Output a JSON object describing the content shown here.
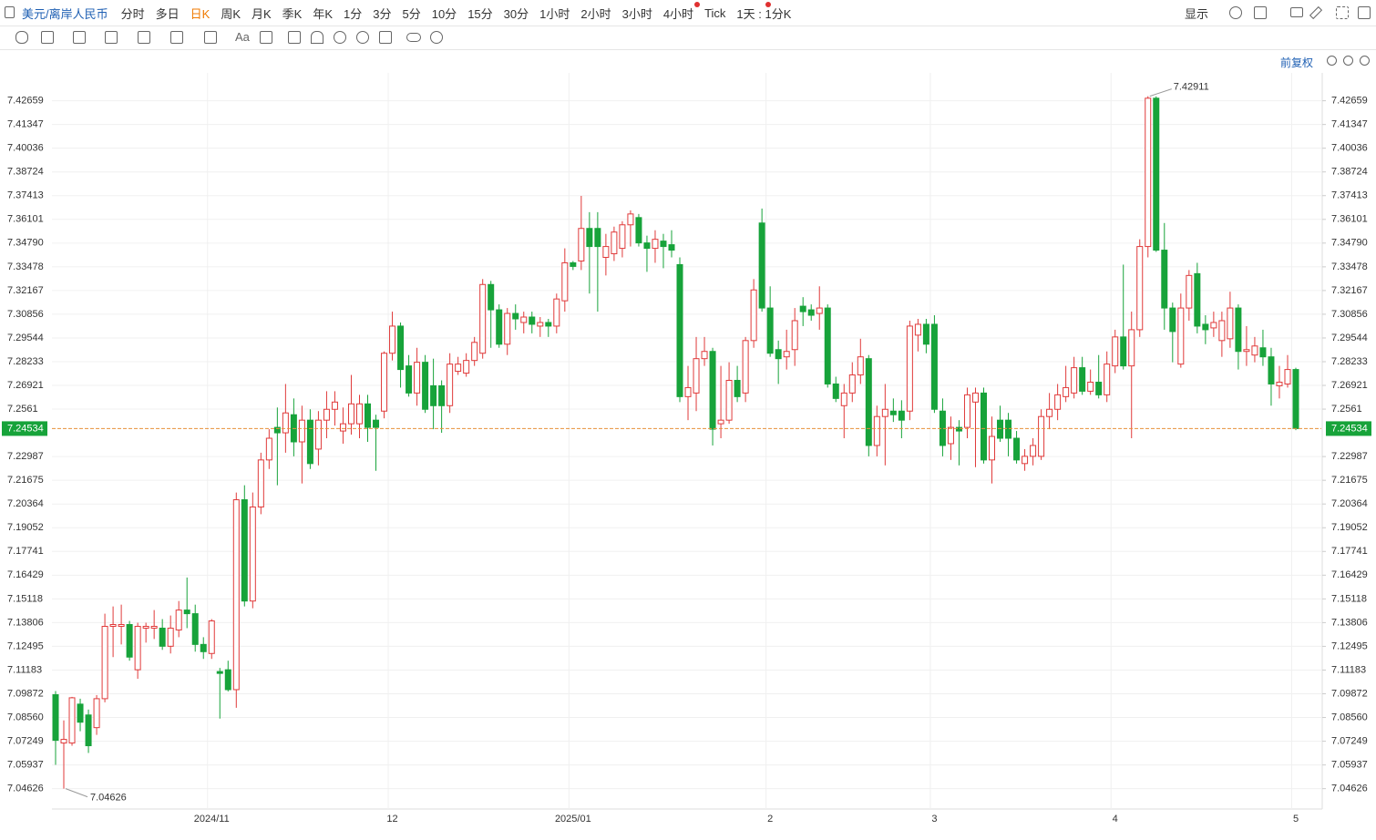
{
  "toolbar": {
    "symbol": "美元/离岸人民币",
    "periods": [
      "分时",
      "多日",
      "日K",
      "周K",
      "月K",
      "季K",
      "年K",
      "1分",
      "3分",
      "5分",
      "10分",
      "15分",
      "30分",
      "1小时",
      "2小时",
      "3小时",
      "4小时",
      "Tick"
    ],
    "interval": "1天 : 1分K",
    "display": "显示"
  },
  "subbar": {
    "text_tool": "Aa",
    "adjust": "前复权"
  },
  "chart_data": {
    "type": "candlestick",
    "title": "美元/离岸人民币",
    "up_color": "#e03a3a",
    "down_color": "#17a33a",
    "grid": true,
    "ylim": [
      7.035,
      7.442
    ],
    "yticks": [
      7.04626,
      7.05937,
      7.07249,
      {
        "value": 7.0856,
        "label": "7.08560"
      },
      7.09872,
      7.11183,
      7.12495,
      7.13806,
      7.15118,
      7.16429,
      7.17741,
      7.19052,
      7.20364,
      7.21675,
      7.22987,
      7.2561,
      7.26921,
      7.28233,
      7.29544,
      7.30856,
      7.32167,
      7.33478,
      {
        "value": 7.3479,
        "label": "7.34790"
      },
      7.36101,
      7.37413,
      7.38724,
      7.40036,
      7.41347,
      7.42659
    ],
    "categories": [
      null,
      null,
      null,
      null,
      null,
      null,
      null,
      null,
      null,
      null,
      null,
      null,
      null,
      null,
      null,
      null,
      null,
      null,
      null,
      "2024/11",
      null,
      null,
      null,
      null,
      null,
      null,
      null,
      null,
      null,
      null,
      null,
      null,
      null,
      null,
      null,
      null,
      null,
      null,
      null,
      null,
      null,
      "12",
      null,
      null,
      null,
      null,
      null,
      null,
      null,
      null,
      null,
      null,
      null,
      null,
      null,
      null,
      null,
      null,
      null,
      null,
      null,
      null,
      null,
      "2025/01",
      null,
      null,
      null,
      null,
      null,
      null,
      null,
      null,
      null,
      null,
      null,
      null,
      null,
      null,
      null,
      null,
      null,
      null,
      null,
      null,
      null,
      null,
      null,
      "2",
      null,
      null,
      null,
      null,
      null,
      null,
      null,
      null,
      null,
      null,
      null,
      null,
      null,
      null,
      null,
      null,
      null,
      null,
      null,
      "3",
      null,
      null,
      null,
      null,
      null,
      null,
      null,
      null,
      null,
      null,
      null,
      null,
      null,
      null,
      null,
      null,
      null,
      null,
      null,
      null,
      null,
      "4",
      null,
      null,
      null,
      null,
      null,
      null,
      null,
      null,
      null,
      null,
      null,
      null,
      null,
      null,
      null,
      null,
      null,
      null,
      null,
      null,
      null,
      "5"
    ],
    "ohlc": [
      [
        7.0982,
        7.1002,
        7.0594,
        7.073
      ],
      [
        7.0715,
        7.084,
        7.04626,
        7.0735
      ],
      [
        7.0715,
        7.097,
        7.07,
        7.0965
      ],
      [
        7.093,
        7.096,
        7.078,
        7.083
      ],
      [
        7.087,
        7.09,
        7.066,
        7.07
      ],
      [
        7.08,
        7.098,
        7.076,
        7.096
      ],
      [
        7.096,
        7.143,
        7.094,
        7.136
      ],
      [
        7.136,
        7.147,
        7.119,
        7.137
      ],
      [
        7.136,
        7.148,
        7.126,
        7.137
      ],
      [
        7.137,
        7.139,
        7.117,
        7.119
      ],
      [
        7.112,
        7.138,
        7.107,
        7.136
      ],
      [
        7.135,
        7.138,
        7.127,
        7.136
      ],
      [
        7.135,
        7.145,
        7.129,
        7.136
      ],
      [
        7.135,
        7.14,
        7.123,
        7.125
      ],
      [
        7.125,
        7.142,
        7.121,
        7.135
      ],
      [
        7.134,
        7.15,
        7.13,
        7.145
      ],
      [
        7.145,
        7.163,
        7.135,
        7.143
      ],
      [
        7.143,
        7.148,
        7.122,
        7.126
      ],
      [
        7.126,
        7.13,
        7.118,
        7.122
      ],
      [
        7.121,
        7.14,
        7.118,
        7.139
      ],
      [
        7.111,
        7.113,
        7.085,
        7.11
      ],
      [
        7.112,
        7.117,
        7.1,
        7.101
      ],
      [
        7.101,
        7.21,
        7.091,
        7.206
      ],
      [
        7.206,
        7.214,
        7.147,
        7.15
      ],
      [
        7.15,
        7.21,
        7.146,
        7.202
      ],
      [
        7.202,
        7.232,
        7.198,
        7.228
      ],
      [
        7.228,
        7.245,
        7.223,
        7.24
      ],
      [
        7.246,
        7.257,
        7.214,
        7.243
      ],
      [
        7.243,
        7.27,
        7.232,
        7.254
      ],
      [
        7.253,
        7.262,
        7.23,
        7.238
      ],
      [
        7.238,
        7.258,
        7.215,
        7.25
      ],
      [
        7.25,
        7.256,
        7.223,
        7.226
      ],
      [
        7.234,
        7.255,
        7.225,
        7.25
      ],
      [
        7.25,
        7.266,
        7.24,
        7.256
      ],
      [
        7.256,
        7.266,
        7.247,
        7.26
      ],
      [
        7.244,
        7.257,
        7.237,
        7.248
      ],
      [
        7.248,
        7.275,
        7.242,
        7.259
      ],
      [
        7.248,
        7.264,
        7.24,
        7.259
      ],
      [
        7.259,
        7.264,
        7.238,
        7.246
      ],
      [
        7.25,
        7.253,
        7.222,
        7.246
      ],
      [
        7.255,
        7.288,
        7.251,
        7.287
      ],
      [
        7.287,
        7.31,
        7.283,
        7.302
      ],
      [
        7.302,
        7.304,
        7.268,
        7.278
      ],
      [
        7.28,
        7.286,
        7.263,
        7.265
      ],
      [
        7.265,
        7.29,
        7.258,
        7.282
      ],
      [
        7.282,
        7.286,
        7.254,
        7.256
      ],
      [
        7.269,
        7.284,
        7.245,
        7.258
      ],
      [
        7.269,
        7.272,
        7.243,
        7.258
      ],
      [
        7.258,
        7.287,
        7.254,
        7.281
      ],
      [
        7.277,
        7.285,
        7.275,
        7.281
      ],
      [
        7.276,
        7.287,
        7.274,
        7.283
      ],
      [
        7.283,
        7.296,
        7.28,
        7.293
      ],
      [
        7.287,
        7.328,
        7.284,
        7.325
      ],
      [
        7.325,
        7.327,
        7.29,
        7.311
      ],
      [
        7.311,
        7.314,
        7.29,
        7.292
      ],
      [
        7.292,
        7.312,
        7.286,
        7.309
      ],
      [
        7.309,
        7.314,
        7.3,
        7.306
      ],
      [
        7.304,
        7.31,
        7.298,
        7.307
      ],
      [
        7.307,
        7.31,
        7.298,
        7.303
      ],
      [
        7.302,
        7.307,
        7.296,
        7.304
      ],
      [
        7.304,
        7.306,
        7.296,
        7.302
      ],
      [
        7.302,
        7.32,
        7.298,
        7.317
      ],
      [
        7.316,
        7.345,
        7.31,
        7.337
      ],
      [
        7.337,
        7.338,
        7.333,
        7.335
      ],
      [
        7.338,
        7.374,
        7.333,
        7.356
      ],
      [
        7.356,
        7.365,
        7.32,
        7.346
      ],
      [
        7.356,
        7.365,
        7.31,
        7.346
      ],
      [
        7.34,
        7.353,
        7.33,
        7.346
      ],
      [
        7.342,
        7.357,
        7.338,
        7.354
      ],
      [
        7.345,
        7.36,
        7.34,
        7.358
      ],
      [
        7.358,
        7.366,
        7.346,
        7.364
      ],
      [
        7.362,
        7.364,
        7.346,
        7.348
      ],
      [
        7.348,
        7.352,
        7.332,
        7.345
      ],
      [
        7.345,
        7.355,
        7.337,
        7.35
      ],
      [
        7.349,
        7.353,
        7.334,
        7.346
      ],
      [
        7.347,
        7.355,
        7.34,
        7.344
      ],
      [
        7.336,
        7.34,
        7.26,
        7.263
      ],
      [
        7.263,
        7.28,
        7.25,
        7.268
      ],
      [
        7.265,
        7.296,
        7.255,
        7.284
      ],
      [
        7.284,
        7.296,
        7.28,
        7.288
      ],
      [
        7.288,
        7.29,
        7.236,
        7.245
      ],
      [
        7.248,
        7.28,
        7.24,
        7.25
      ],
      [
        7.25,
        7.282,
        7.248,
        7.272
      ],
      [
        7.272,
        7.28,
        7.26,
        7.263
      ],
      [
        7.265,
        7.296,
        7.26,
        7.294
      ],
      [
        7.294,
        7.328,
        7.29,
        7.322
      ],
      [
        7.359,
        7.367,
        7.31,
        7.312
      ],
      [
        7.312,
        7.324,
        7.285,
        7.287
      ],
      [
        7.289,
        7.294,
        7.27,
        7.284
      ],
      [
        7.285,
        7.3,
        7.278,
        7.288
      ],
      [
        7.289,
        7.312,
        7.28,
        7.305
      ],
      [
        7.313,
        7.318,
        7.302,
        7.31
      ],
      [
        7.311,
        7.314,
        7.305,
        7.308
      ],
      [
        7.309,
        7.324,
        7.3,
        7.312
      ],
      [
        7.312,
        7.314,
        7.268,
        7.27
      ],
      [
        7.27,
        7.274,
        7.26,
        7.262
      ],
      [
        7.258,
        7.27,
        7.24,
        7.265
      ],
      [
        7.265,
        7.282,
        7.26,
        7.275
      ],
      [
        7.275,
        7.295,
        7.27,
        7.285
      ],
      [
        7.284,
        7.286,
        7.23,
        7.236
      ],
      [
        7.236,
        7.258,
        7.23,
        7.252
      ],
      [
        7.252,
        7.27,
        7.225,
        7.256
      ],
      [
        7.255,
        7.262,
        7.249,
        7.253
      ],
      [
        7.255,
        7.261,
        7.24,
        7.25
      ],
      [
        7.255,
        7.305,
        7.25,
        7.302
      ],
      [
        7.297,
        7.306,
        7.288,
        7.303
      ],
      [
        7.303,
        7.306,
        7.287,
        7.292
      ],
      [
        7.303,
        7.308,
        7.254,
        7.256
      ],
      [
        7.255,
        7.262,
        7.23,
        7.236
      ],
      [
        7.237,
        7.252,
        7.228,
        7.246
      ],
      [
        7.246,
        7.25,
        7.225,
        7.244
      ],
      [
        7.246,
        7.268,
        7.24,
        7.264
      ],
      [
        7.26,
        7.268,
        7.224,
        7.265
      ],
      [
        7.265,
        7.268,
        7.226,
        7.228
      ],
      [
        7.228,
        7.252,
        7.215,
        7.241
      ],
      [
        7.25,
        7.258,
        7.238,
        7.24
      ],
      [
        7.25,
        7.254,
        7.23,
        7.24
      ],
      [
        7.24,
        7.244,
        7.226,
        7.228
      ],
      [
        7.226,
        7.234,
        7.222,
        7.23
      ],
      [
        7.23,
        7.24,
        7.225,
        7.236
      ],
      [
        7.23,
        7.256,
        7.228,
        7.252
      ],
      [
        7.252,
        7.265,
        7.245,
        7.256
      ],
      [
        7.256,
        7.27,
        7.25,
        7.264
      ],
      [
        7.263,
        7.28,
        7.26,
        7.268
      ],
      [
        7.265,
        7.285,
        7.262,
        7.279
      ],
      [
        7.279,
        7.285,
        7.264,
        7.266
      ],
      [
        7.266,
        7.278,
        7.264,
        7.271
      ],
      [
        7.271,
        7.286,
        7.262,
        7.264
      ],
      [
        7.264,
        7.288,
        7.26,
        7.281
      ],
      [
        7.28,
        7.3,
        7.276,
        7.296
      ],
      [
        7.296,
        7.336,
        7.278,
        7.28
      ],
      [
        7.28,
        7.31,
        7.24,
        7.3
      ],
      [
        7.3,
        7.35,
        7.296,
        7.346
      ],
      [
        7.346,
        7.42911,
        7.34,
        7.428
      ],
      [
        7.428,
        7.429,
        7.343,
        7.344
      ],
      [
        7.344,
        7.359,
        7.3,
        7.312
      ],
      [
        7.312,
        7.315,
        7.282,
        7.299
      ],
      [
        7.281,
        7.32,
        7.279,
        7.312
      ],
      [
        7.312,
        7.333,
        7.305,
        7.33
      ],
      [
        7.331,
        7.337,
        7.298,
        7.302
      ],
      [
        7.303,
        7.308,
        7.292,
        7.3
      ],
      [
        7.301,
        7.31,
        7.296,
        7.304
      ],
      [
        7.294,
        7.31,
        7.285,
        7.305
      ],
      [
        7.295,
        7.321,
        7.29,
        7.312
      ],
      [
        7.312,
        7.314,
        7.278,
        7.288
      ],
      [
        7.288,
        7.302,
        7.28,
        7.289
      ],
      [
        7.286,
        7.296,
        7.282,
        7.291
      ],
      [
        7.29,
        7.3,
        7.28,
        7.285
      ],
      [
        7.285,
        7.29,
        7.258,
        7.27
      ],
      [
        7.269,
        7.28,
        7.262,
        7.271
      ],
      [
        7.27,
        7.286,
        7.268,
        7.278
      ],
      [
        7.278,
        7.279,
        7.2445,
        7.24534
      ]
    ],
    "max_label": 7.42911,
    "min_label": 7.04626,
    "last_price": 7.24534
  }
}
